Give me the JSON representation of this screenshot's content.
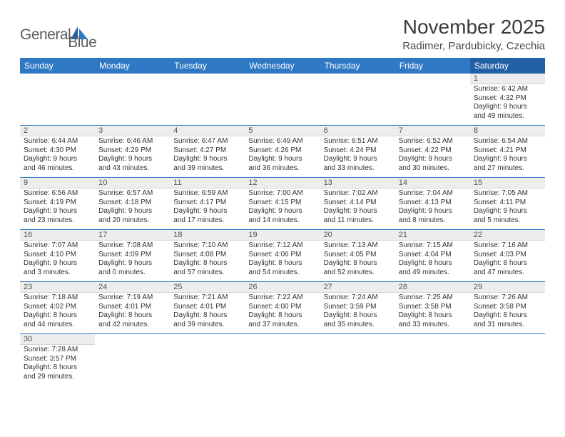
{
  "brand": {
    "part1": "General",
    "part2": "Blue"
  },
  "title": "November 2025",
  "location": "Radimer, Pardubicky, Czechia",
  "colors": {
    "header_bg": "#2f78c4",
    "header_bg_alt": "#2260a5",
    "daynum_bg": "#eceded",
    "weeksep": "#2f78c4",
    "text": "#333333"
  },
  "weekdays": [
    "Sunday",
    "Monday",
    "Tuesday",
    "Wednesday",
    "Thursday",
    "Friday",
    "Saturday"
  ],
  "highlight_col": 6,
  "weeks": [
    [
      null,
      null,
      null,
      null,
      null,
      null,
      {
        "n": "1",
        "sr": "6:42 AM",
        "ss": "4:32 PM",
        "dl1": "9 hours",
        "dl2": "and 49 minutes."
      }
    ],
    [
      {
        "n": "2",
        "sr": "6:44 AM",
        "ss": "4:30 PM",
        "dl1": "9 hours",
        "dl2": "and 46 minutes."
      },
      {
        "n": "3",
        "sr": "6:46 AM",
        "ss": "4:29 PM",
        "dl1": "9 hours",
        "dl2": "and 43 minutes."
      },
      {
        "n": "4",
        "sr": "6:47 AM",
        "ss": "4:27 PM",
        "dl1": "9 hours",
        "dl2": "and 39 minutes."
      },
      {
        "n": "5",
        "sr": "6:49 AM",
        "ss": "4:26 PM",
        "dl1": "9 hours",
        "dl2": "and 36 minutes."
      },
      {
        "n": "6",
        "sr": "6:51 AM",
        "ss": "4:24 PM",
        "dl1": "9 hours",
        "dl2": "and 33 minutes."
      },
      {
        "n": "7",
        "sr": "6:52 AM",
        "ss": "4:22 PM",
        "dl1": "9 hours",
        "dl2": "and 30 minutes."
      },
      {
        "n": "8",
        "sr": "6:54 AM",
        "ss": "4:21 PM",
        "dl1": "9 hours",
        "dl2": "and 27 minutes."
      }
    ],
    [
      {
        "n": "9",
        "sr": "6:56 AM",
        "ss": "4:19 PM",
        "dl1": "9 hours",
        "dl2": "and 23 minutes."
      },
      {
        "n": "10",
        "sr": "6:57 AM",
        "ss": "4:18 PM",
        "dl1": "9 hours",
        "dl2": "and 20 minutes."
      },
      {
        "n": "11",
        "sr": "6:59 AM",
        "ss": "4:17 PM",
        "dl1": "9 hours",
        "dl2": "and 17 minutes."
      },
      {
        "n": "12",
        "sr": "7:00 AM",
        "ss": "4:15 PM",
        "dl1": "9 hours",
        "dl2": "and 14 minutes."
      },
      {
        "n": "13",
        "sr": "7:02 AM",
        "ss": "4:14 PM",
        "dl1": "9 hours",
        "dl2": "and 11 minutes."
      },
      {
        "n": "14",
        "sr": "7:04 AM",
        "ss": "4:13 PM",
        "dl1": "9 hours",
        "dl2": "and 8 minutes."
      },
      {
        "n": "15",
        "sr": "7:05 AM",
        "ss": "4:11 PM",
        "dl1": "9 hours",
        "dl2": "and 5 minutes."
      }
    ],
    [
      {
        "n": "16",
        "sr": "7:07 AM",
        "ss": "4:10 PM",
        "dl1": "9 hours",
        "dl2": "and 3 minutes."
      },
      {
        "n": "17",
        "sr": "7:08 AM",
        "ss": "4:09 PM",
        "dl1": "9 hours",
        "dl2": "and 0 minutes."
      },
      {
        "n": "18",
        "sr": "7:10 AM",
        "ss": "4:08 PM",
        "dl1": "8 hours",
        "dl2": "and 57 minutes."
      },
      {
        "n": "19",
        "sr": "7:12 AM",
        "ss": "4:06 PM",
        "dl1": "8 hours",
        "dl2": "and 54 minutes."
      },
      {
        "n": "20",
        "sr": "7:13 AM",
        "ss": "4:05 PM",
        "dl1": "8 hours",
        "dl2": "and 52 minutes."
      },
      {
        "n": "21",
        "sr": "7:15 AM",
        "ss": "4:04 PM",
        "dl1": "8 hours",
        "dl2": "and 49 minutes."
      },
      {
        "n": "22",
        "sr": "7:16 AM",
        "ss": "4:03 PM",
        "dl1": "8 hours",
        "dl2": "and 47 minutes."
      }
    ],
    [
      {
        "n": "23",
        "sr": "7:18 AM",
        "ss": "4:02 PM",
        "dl1": "8 hours",
        "dl2": "and 44 minutes."
      },
      {
        "n": "24",
        "sr": "7:19 AM",
        "ss": "4:01 PM",
        "dl1": "8 hours",
        "dl2": "and 42 minutes."
      },
      {
        "n": "25",
        "sr": "7:21 AM",
        "ss": "4:01 PM",
        "dl1": "8 hours",
        "dl2": "and 39 minutes."
      },
      {
        "n": "26",
        "sr": "7:22 AM",
        "ss": "4:00 PM",
        "dl1": "8 hours",
        "dl2": "and 37 minutes."
      },
      {
        "n": "27",
        "sr": "7:24 AM",
        "ss": "3:59 PM",
        "dl1": "8 hours",
        "dl2": "and 35 minutes."
      },
      {
        "n": "28",
        "sr": "7:25 AM",
        "ss": "3:58 PM",
        "dl1": "8 hours",
        "dl2": "and 33 minutes."
      },
      {
        "n": "29",
        "sr": "7:26 AM",
        "ss": "3:58 PM",
        "dl1": "8 hours",
        "dl2": "and 31 minutes."
      }
    ],
    [
      {
        "n": "30",
        "sr": "7:28 AM",
        "ss": "3:57 PM",
        "dl1": "8 hours",
        "dl2": "and 29 minutes."
      },
      null,
      null,
      null,
      null,
      null,
      null
    ]
  ],
  "labels": {
    "sunrise": "Sunrise: ",
    "sunset": "Sunset: ",
    "daylight": "Daylight: "
  }
}
